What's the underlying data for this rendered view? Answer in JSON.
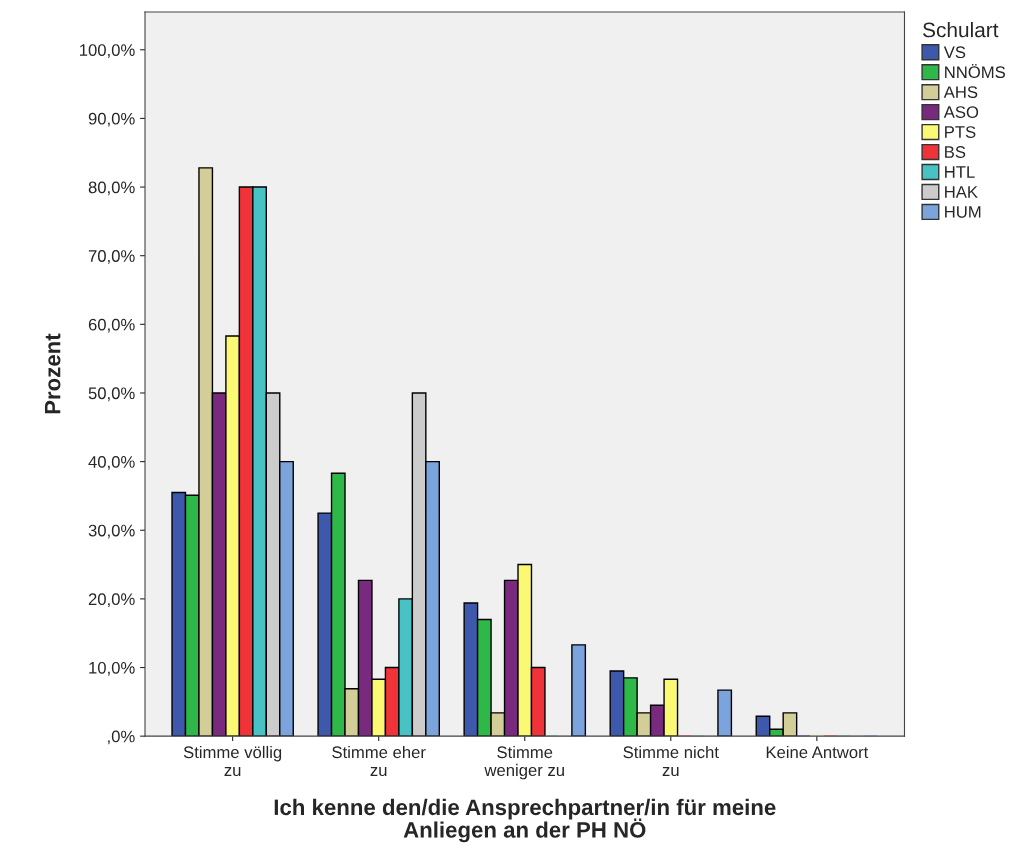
{
  "chart_data": {
    "type": "bar",
    "xlabel": "Ich kenne den/die Ansprechpartner/in für meine\nAnliegen an der PH NÖ",
    "ylabel": "Prozent",
    "legend_title": "Schulart",
    "categories": [
      "Stimme völlig\nzu",
      "Stimme eher\nzu",
      "Stimme\nweniger zu",
      "Stimme nicht\nzu",
      "Keine Antwort"
    ],
    "series": [
      {
        "name": "VS",
        "color": "#3e58ac",
        "values": [
          35.5,
          32.5,
          19.4,
          9.5,
          2.9
        ]
      },
      {
        "name": "NNÖMS",
        "color": "#2eb848",
        "values": [
          35.1,
          38.3,
          17.0,
          8.5,
          1.0
        ]
      },
      {
        "name": "AHS",
        "color": "#d3ce97",
        "values": [
          82.8,
          6.9,
          3.4,
          3.4,
          3.4
        ]
      },
      {
        "name": "ASO",
        "color": "#792a7f",
        "values": [
          50.0,
          22.7,
          22.7,
          4.5,
          0
        ]
      },
      {
        "name": "PTS",
        "color": "#fbf873",
        "values": [
          58.3,
          8.3,
          25.0,
          8.3,
          0
        ]
      },
      {
        "name": "BS",
        "color": "#ef3338",
        "values": [
          80.0,
          10.0,
          10.0,
          0,
          0
        ]
      },
      {
        "name": "HTL",
        "color": "#48c2c5",
        "values": [
          80.0,
          20.0,
          0,
          0,
          0
        ]
      },
      {
        "name": "HAK",
        "color": "#cccccc",
        "values": [
          50.0,
          50.0,
          0,
          0,
          0
        ]
      },
      {
        "name": "HUM",
        "color": "#7ba4dd",
        "values": [
          40.0,
          40.0,
          13.3,
          6.7,
          0
        ]
      }
    ],
    "ylim": [
      0,
      105.5
    ],
    "yticks": [
      {
        "value": 0,
        "label": ",0%"
      },
      {
        "value": 10,
        "label": "10,0%"
      },
      {
        "value": 20,
        "label": "20,0%"
      },
      {
        "value": 30,
        "label": "30,0%"
      },
      {
        "value": 40,
        "label": "40,0%"
      },
      {
        "value": 50,
        "label": "50,0%"
      },
      {
        "value": 60,
        "label": "60,0%"
      },
      {
        "value": 70,
        "label": "70,0%"
      },
      {
        "value": 80,
        "label": "80,0%"
      },
      {
        "value": 90,
        "label": "90,0%"
      },
      {
        "value": 100,
        "label": "100,0%"
      }
    ],
    "grid": false,
    "legend": "right"
  }
}
